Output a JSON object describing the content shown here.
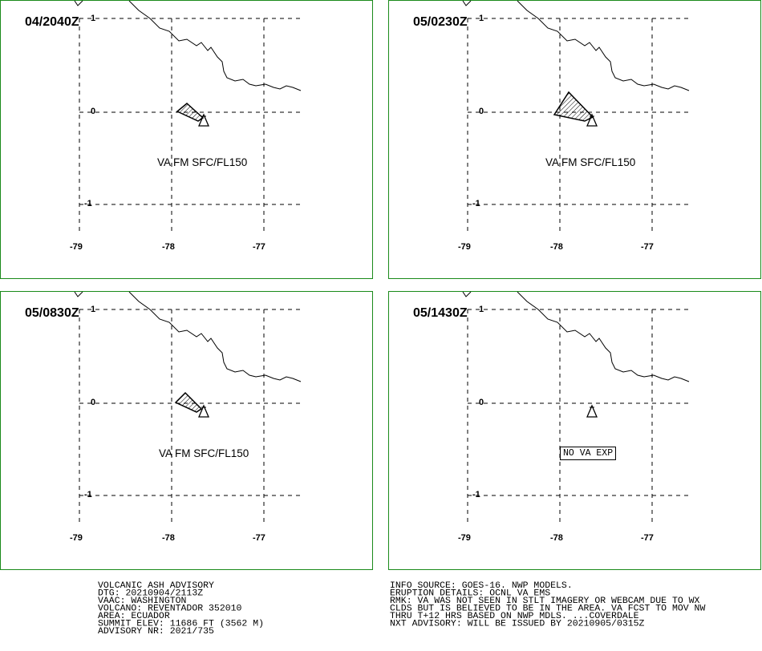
{
  "panels": [
    {
      "time": "04/2040Z",
      "label": "VA FM SFC/FL150",
      "label_type": "text"
    },
    {
      "time": "05/0230Z",
      "label": "VA FM SFC/FL150",
      "label_type": "text"
    },
    {
      "time": "05/0830Z",
      "label": "VA FM SFC/FL150",
      "label_type": "text"
    },
    {
      "time": "05/1430Z",
      "label": "NO VA EXP",
      "label_type": "box"
    }
  ],
  "axes": {
    "lat_labels": [
      "1",
      "0",
      "-1"
    ],
    "lon_labels": [
      "-79",
      "-78",
      "-77"
    ]
  },
  "advisory_left": [
    "VOLCANIC ASH ADVISORY",
    "DTG: 20210904/2113Z",
    "VAAC: WASHINGTON",
    "VOLCANO: REVENTADOR 352010",
    "AREA: ECUADOR",
    "SUMMIT ELEV: 11686 FT (3562 M)",
    "ADVISORY NR: 2021/735"
  ],
  "advisory_right": [
    "INFO SOURCE: GOES-16. NWP MODELS.",
    "ERUPTION DETAILS: OCNL VA EMS",
    "RMK: VA WAS NOT SEEN IN STLT IMAGERY OR WEBCAM DUE TO WX",
    "CLDS BUT IS BELIEVED TO BE IN THE AREA. VA FCST TO MOV NW",
    "THRU T+12 HRS BASED ON NWP MDLS. ...COVERDALE",
    "NXT ADVISORY: WILL BE ISSUED BY 20210905/0315Z"
  ],
  "colors": {
    "border": "#1a8a1a",
    "lines": "#000000"
  }
}
